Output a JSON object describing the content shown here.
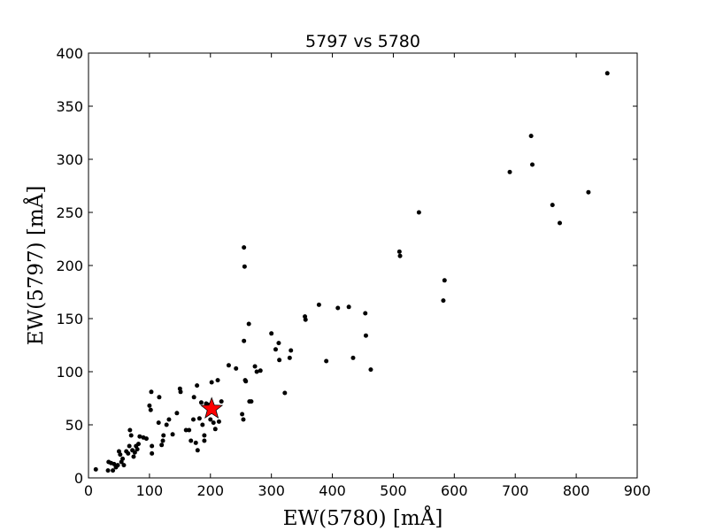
{
  "chart_data": {
    "type": "scatter",
    "title": "5797 vs 5780",
    "xlabel": "EW(5780) [mÅ]",
    "ylabel": "EW(5797) [mÅ]",
    "xlim": [
      0,
      900
    ],
    "ylim": [
      0,
      400
    ],
    "xticks": [
      0,
      100,
      200,
      300,
      400,
      500,
      600,
      700,
      800,
      900
    ],
    "yticks": [
      0,
      50,
      100,
      150,
      200,
      250,
      300,
      350,
      400
    ],
    "grid": false,
    "series": [
      {
        "marker": "circle",
        "color": "#000000",
        "points": [
          [
            12,
            8
          ],
          [
            32,
            7
          ],
          [
            33,
            15
          ],
          [
            37,
            14
          ],
          [
            40,
            7
          ],
          [
            42,
            13
          ],
          [
            45,
            10
          ],
          [
            48,
            12
          ],
          [
            50,
            25
          ],
          [
            52,
            22
          ],
          [
            54,
            15
          ],
          [
            56,
            18
          ],
          [
            58,
            12
          ],
          [
            62,
            25
          ],
          [
            65,
            23
          ],
          [
            67,
            30
          ],
          [
            68,
            45
          ],
          [
            70,
            40
          ],
          [
            72,
            26
          ],
          [
            74,
            20
          ],
          [
            76,
            24
          ],
          [
            78,
            30
          ],
          [
            80,
            27
          ],
          [
            82,
            32
          ],
          [
            84,
            39
          ],
          [
            90,
            38
          ],
          [
            95,
            37
          ],
          [
            100,
            68
          ],
          [
            102,
            64
          ],
          [
            103,
            81
          ],
          [
            104,
            23
          ],
          [
            104,
            30
          ],
          [
            115,
            52
          ],
          [
            116,
            76
          ],
          [
            120,
            31
          ],
          [
            122,
            35
          ],
          [
            123,
            40
          ],
          [
            128,
            50
          ],
          [
            132,
            55
          ],
          [
            138,
            41
          ],
          [
            145,
            61
          ],
          [
            150,
            84
          ],
          [
            151,
            81
          ],
          [
            160,
            45
          ],
          [
            165,
            45
          ],
          [
            168,
            35
          ],
          [
            172,
            55
          ],
          [
            173,
            76
          ],
          [
            176,
            33
          ],
          [
            178,
            87
          ],
          [
            179,
            26
          ],
          [
            182,
            56
          ],
          [
            185,
            71
          ],
          [
            187,
            50
          ],
          [
            190,
            35
          ],
          [
            190,
            40
          ],
          [
            193,
            70
          ],
          [
            196,
            69
          ],
          [
            200,
            55
          ],
          [
            202,
            90
          ],
          [
            205,
            52
          ],
          [
            208,
            46
          ],
          [
            212,
            92
          ],
          [
            214,
            53
          ],
          [
            218,
            72
          ],
          [
            230,
            106
          ],
          [
            242,
            103
          ],
          [
            252,
            60
          ],
          [
            254,
            55
          ],
          [
            255,
            129
          ],
          [
            255,
            217
          ],
          [
            256,
            199
          ],
          [
            257,
            92
          ],
          [
            258,
            91
          ],
          [
            263,
            145
          ],
          [
            264,
            72
          ],
          [
            267,
            72
          ],
          [
            273,
            105
          ],
          [
            276,
            100
          ],
          [
            282,
            101
          ],
          [
            300,
            136
          ],
          [
            307,
            121
          ],
          [
            312,
            127
          ],
          [
            313,
            111
          ],
          [
            322,
            80
          ],
          [
            330,
            113
          ],
          [
            332,
            120
          ],
          [
            355,
            152
          ],
          [
            356,
            149
          ],
          [
            378,
            163
          ],
          [
            390,
            110
          ],
          [
            409,
            160
          ],
          [
            427,
            161
          ],
          [
            434,
            113
          ],
          [
            454,
            155
          ],
          [
            455,
            134
          ],
          [
            463,
            102
          ],
          [
            510,
            213
          ],
          [
            511,
            209
          ],
          [
            542,
            250
          ],
          [
            582,
            167
          ],
          [
            584,
            186
          ],
          [
            691,
            288
          ],
          [
            726,
            322
          ],
          [
            728,
            295
          ],
          [
            761,
            257
          ],
          [
            773,
            240
          ],
          [
            820,
            269
          ],
          [
            851,
            381
          ]
        ]
      },
      {
        "marker": "star",
        "color": "#ff0000",
        "points": [
          [
            202,
            65
          ]
        ]
      }
    ]
  }
}
